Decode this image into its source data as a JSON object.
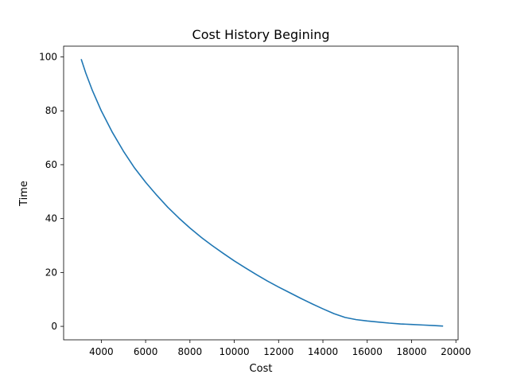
{
  "chart_data": {
    "type": "line",
    "title": "Cost History Begining",
    "xlabel": "Cost",
    "ylabel": "Time",
    "xlim": [
      2300,
      20100
    ],
    "ylim": [
      -5,
      104
    ],
    "xticks": [
      4000,
      6000,
      8000,
      10000,
      12000,
      14000,
      16000,
      18000,
      20000
    ],
    "yticks": [
      0,
      20,
      40,
      60,
      80,
      100
    ],
    "grid": false,
    "series": [
      {
        "color": "#1f77b4",
        "x": [
          3100,
          3300,
          3600,
          4000,
          4500,
          5000,
          5500,
          6000,
          6500,
          7000,
          7500,
          8000,
          8500,
          9000,
          9500,
          10000,
          10500,
          11000,
          11500,
          12000,
          12500,
          13000,
          13500,
          14000,
          14500,
          15000,
          15500,
          16000,
          16500,
          17000,
          17500,
          18000,
          18500,
          19000,
          19400
        ],
        "y": [
          99,
          94,
          87.5,
          80,
          72,
          65,
          58.8,
          53.5,
          48.7,
          44.2,
          40.2,
          36.5,
          33.1,
          30,
          27.1,
          24.3,
          21.7,
          19.2,
          16.8,
          14.6,
          12.5,
          10.4,
          8.4,
          6.5,
          4.7,
          3.3,
          2.5,
          2,
          1.6,
          1.2,
          0.9,
          0.7,
          0.5,
          0.3,
          0.1
        ]
      }
    ]
  }
}
